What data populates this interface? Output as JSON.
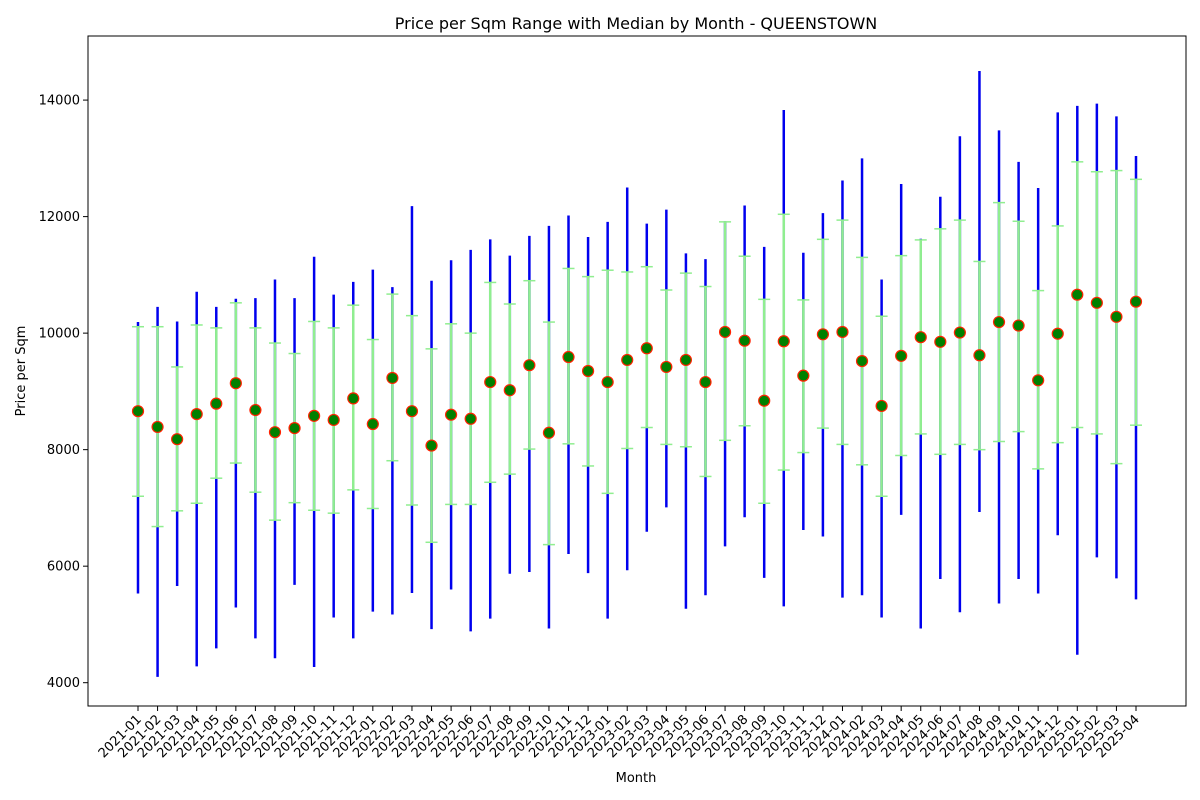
{
  "chart_data": {
    "type": "range",
    "title": "Price per Sqm Range with Median by Month - QUEENSTOWN",
    "xlabel": "Month",
    "ylabel": "Price per Sqm",
    "ylim": [
      3600,
      15100
    ],
    "yticks": [
      4000,
      6000,
      8000,
      10000,
      12000,
      14000
    ],
    "grid": false,
    "colors": {
      "minmax": "#0000ee",
      "quartile": "#90ee90",
      "median_fill": "#008000",
      "median_edge": "#ff2200"
    },
    "categories": [
      "2021-01",
      "2021-02",
      "2021-03",
      "2021-04",
      "2021-05",
      "2021-06",
      "2021-07",
      "2021-08",
      "2021-09",
      "2021-10",
      "2021-11",
      "2021-12",
      "2022-01",
      "2022-02",
      "2022-03",
      "2022-04",
      "2022-05",
      "2022-06",
      "2022-07",
      "2022-08",
      "2022-09",
      "2022-10",
      "2022-11",
      "2022-12",
      "2023-01",
      "2023-02",
      "2023-03",
      "2023-04",
      "2023-05",
      "2023-06",
      "2023-07",
      "2023-08",
      "2023-09",
      "2023-10",
      "2023-11",
      "2023-12",
      "2024-01",
      "2024-02",
      "2024-03",
      "2024-04",
      "2024-05",
      "2024-06",
      "2024-07",
      "2024-08",
      "2024-09",
      "2024-10",
      "2024-11",
      "2024-12",
      "2025-01",
      "2025-02",
      "2025-03",
      "2025-04"
    ],
    "min": [
      5530,
      4100,
      5660,
      4280,
      4590,
      5290,
      4760,
      4420,
      5680,
      4270,
      5120,
      4760,
      5220,
      5170,
      5540,
      4920,
      5600,
      4880,
      5100,
      5870,
      5900,
      4930,
      6210,
      5880,
      5100,
      5930,
      6590,
      7010,
      5270,
      5500,
      6340,
      6840,
      5800,
      5310,
      6620,
      6510,
      5460,
      5500,
      5120,
      6880,
      4930,
      5780,
      5210,
      6930,
      5360,
      5780,
      5530,
      6530,
      4480,
      6150,
      5790,
      5430
    ],
    "q1": [
      7200,
      6680,
      6950,
      7080,
      7510,
      7770,
      7270,
      6790,
      7090,
      6960,
      6910,
      7310,
      6990,
      7810,
      7050,
      6410,
      7060,
      7060,
      7440,
      7580,
      8010,
      6370,
      8100,
      7720,
      7250,
      8020,
      8380,
      8090,
      8050,
      7540,
      8160,
      8410,
      7080,
      7650,
      7950,
      8370,
      8090,
      7740,
      7200,
      7900,
      8270,
      7920,
      8090,
      8000,
      8140,
      8310,
      7670,
      8120,
      8380,
      8270,
      7760,
      8420
    ],
    "median": [
      8660,
      8390,
      8180,
      8610,
      8790,
      9140,
      8680,
      8300,
      8370,
      8580,
      8510,
      8880,
      8440,
      9230,
      8660,
      8070,
      8600,
      8530,
      9160,
      9020,
      9450,
      8290,
      9590,
      9350,
      9160,
      9540,
      9740,
      9420,
      9540,
      9160,
      10020,
      9870,
      8840,
      9860,
      9270,
      9980,
      10020,
      9520,
      8750,
      9610,
      9930,
      9850,
      10010,
      9620,
      10190,
      10130,
      9190,
      9990,
      10660,
      10520,
      10280,
      10540
    ],
    "q3": [
      10110,
      10110,
      9420,
      10140,
      10090,
      10520,
      10090,
      9830,
      9650,
      10200,
      10090,
      10480,
      9890,
      10670,
      10300,
      9730,
      10160,
      10000,
      10870,
      10500,
      10900,
      10190,
      11110,
      10970,
      11080,
      11050,
      11140,
      10740,
      11030,
      10800,
      11910,
      11320,
      10580,
      12040,
      10570,
      11610,
      11940,
      11300,
      10290,
      11330,
      11600,
      11790,
      11940,
      11230,
      12240,
      11920,
      10730,
      11840,
      12940,
      12770,
      12790,
      12640
    ],
    "max": [
      10190,
      10450,
      10200,
      10710,
      10450,
      10590,
      10600,
      10920,
      10600,
      11310,
      10660,
      10880,
      11090,
      10790,
      12180,
      10900,
      11250,
      11430,
      11610,
      11330,
      11670,
      11840,
      12020,
      11650,
      11910,
      12500,
      11880,
      12120,
      11370,
      11270,
      11920,
      12190,
      11480,
      13830,
      11380,
      12060,
      12620,
      13000,
      10920,
      12560,
      11620,
      12340,
      13380,
      14500,
      13480,
      12940,
      12490,
      13790,
      13900,
      13940,
      13720,
      13040
    ]
  }
}
